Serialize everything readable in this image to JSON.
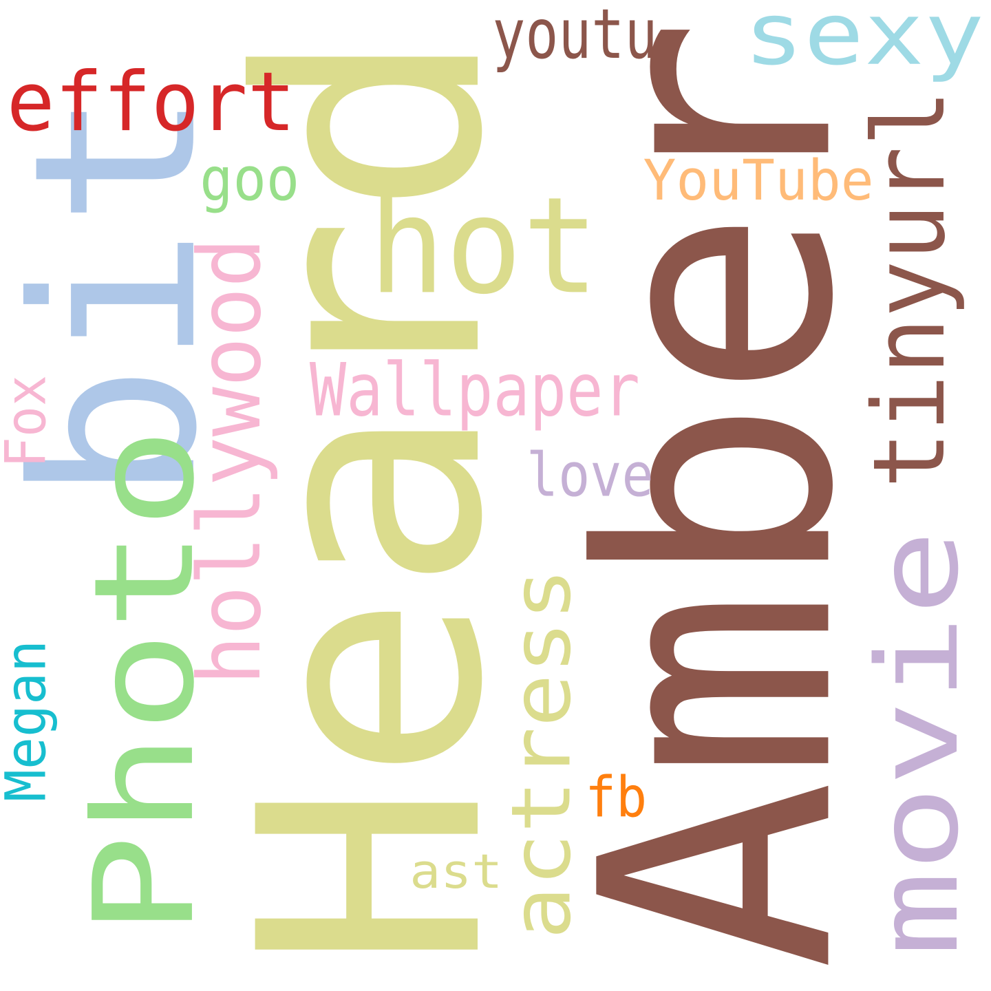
{
  "words": [
    {
      "text": "Heard",
      "color": "#dbdc8d",
      "rotated": true
    },
    {
      "text": "Amber",
      "color": "#8c564b",
      "rotated": true
    },
    {
      "text": "bit",
      "color": "#aec7e8",
      "rotated": true
    },
    {
      "text": "Photo",
      "color": "#98df8a",
      "rotated": true
    },
    {
      "text": "movie",
      "color": "#c5b0d5",
      "rotated": true
    },
    {
      "text": "tinyurl",
      "color": "#8c564b",
      "rotated": true
    },
    {
      "text": "hot",
      "color": "#dbdc8d",
      "rotated": false
    },
    {
      "text": "hollywood",
      "color": "#f7b6d2",
      "rotated": true
    },
    {
      "text": "actress",
      "color": "#dbdc8d",
      "rotated": true
    },
    {
      "text": "effort",
      "color": "#d62728",
      "rotated": false
    },
    {
      "text": "sexy",
      "color": "#9edae5",
      "rotated": false
    },
    {
      "text": "Wallpaper",
      "color": "#f7b6d2",
      "rotated": false
    },
    {
      "text": "youtu",
      "color": "#8c564b",
      "rotated": false
    },
    {
      "text": "YouTube",
      "color": "#ffbb78",
      "rotated": false
    },
    {
      "text": "love",
      "color": "#c5b0d5",
      "rotated": false
    },
    {
      "text": "goo",
      "color": "#98df8a",
      "rotated": false
    },
    {
      "text": "Megan",
      "color": "#17becf",
      "rotated": true
    },
    {
      "text": "Fox",
      "color": "#f7b6d2",
      "rotated": true
    },
    {
      "text": "fb",
      "color": "#ff7f0e",
      "rotated": false
    },
    {
      "text": "ast",
      "color": "#dbdc8d",
      "rotated": false
    }
  ]
}
